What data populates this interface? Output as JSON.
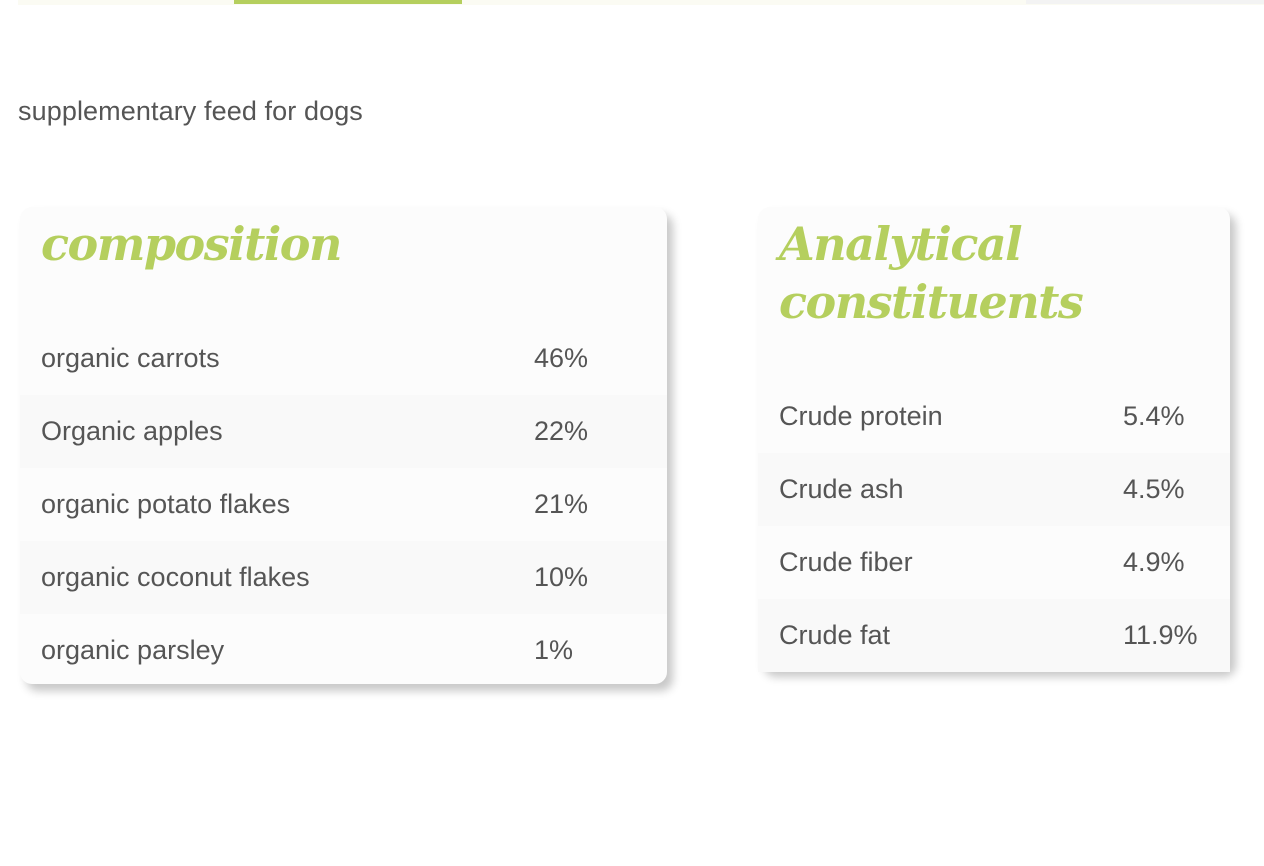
{
  "subtitle": "supplementary feed for dogs",
  "colors": {
    "accent": "#b5cf5e",
    "text": "#555555",
    "card_background": "#fcfcfc"
  },
  "composition": {
    "title": "composition",
    "rows": [
      {
        "name": "organic carrots",
        "value": "46%"
      },
      {
        "name": "Organic apples",
        "value": "22%"
      },
      {
        "name": "organic potato flakes",
        "value": "21%"
      },
      {
        "name": "organic coconut flakes",
        "value": "10%"
      },
      {
        "name": "organic parsley",
        "value": "1%"
      }
    ]
  },
  "analytical": {
    "title_line1": "Analytical",
    "title_line2": "constituents",
    "rows": [
      {
        "name": "Crude protein",
        "value": "5.4%"
      },
      {
        "name": "Crude ash",
        "value": "4.5%"
      },
      {
        "name": "Crude fiber",
        "value": "4.9%"
      },
      {
        "name": "Crude fat",
        "value": "11.9%"
      }
    ]
  }
}
